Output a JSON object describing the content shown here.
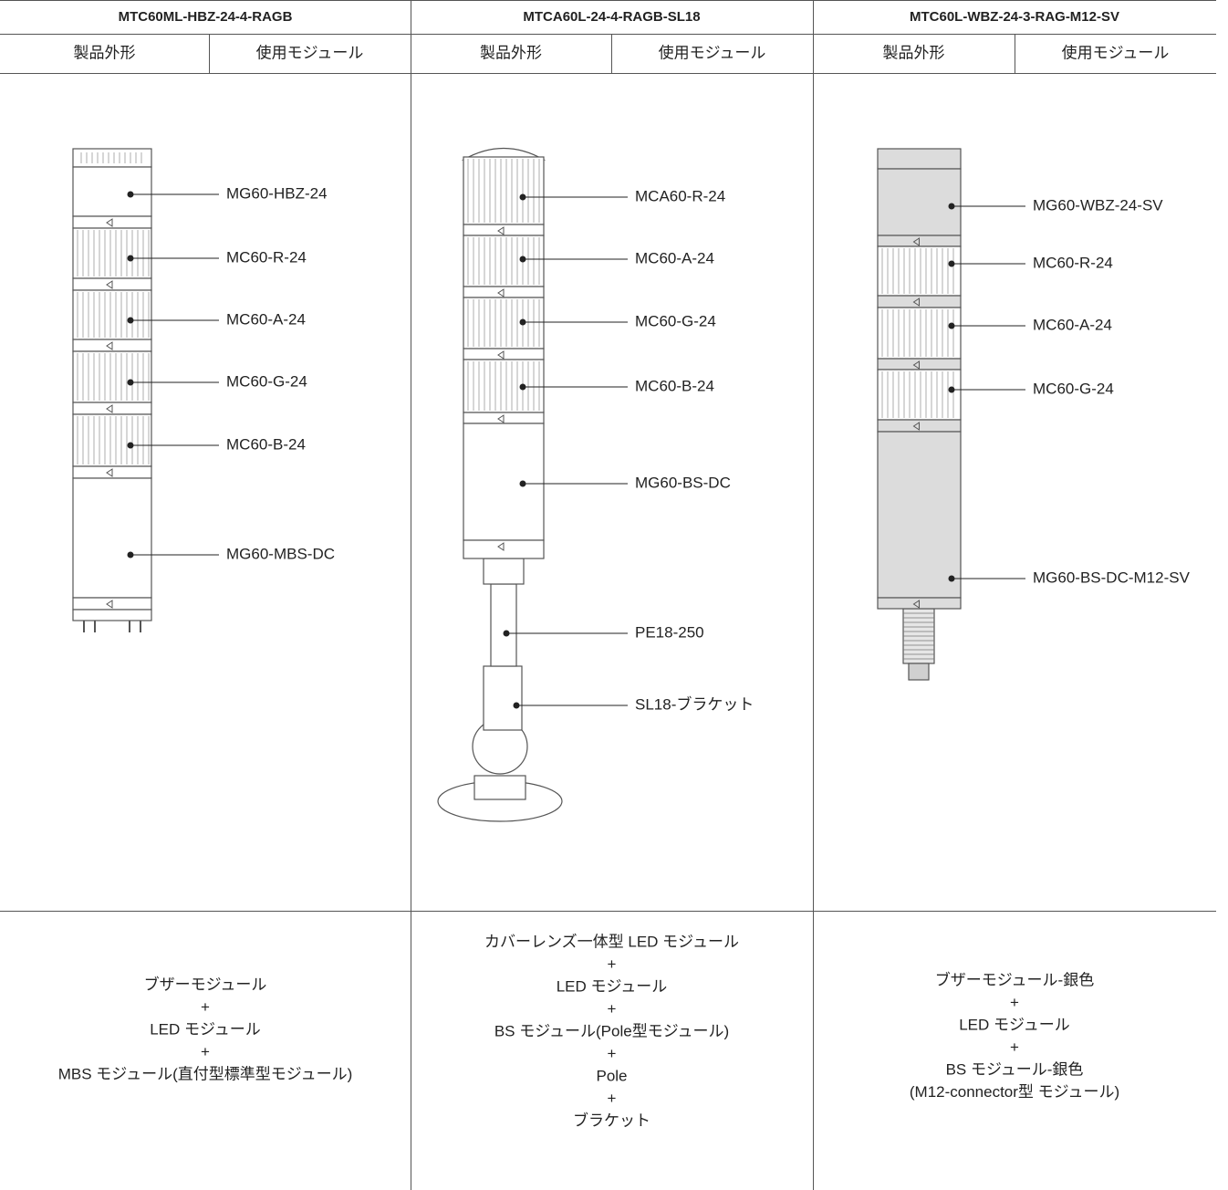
{
  "columns": [
    {
      "title": "MTC60ML-HBZ-24-4-RAGB",
      "subheaders": [
        "製品外形",
        "使用モジュール"
      ],
      "modules": [
        "MG60-HBZ-24",
        "MC60-R-24",
        "MC60-A-24",
        "MC60-G-24",
        "MC60-B-24",
        "MG60-MBS-DC"
      ],
      "description": [
        "ブザーモジュール",
        "+",
        "LED モジュール",
        "+",
        "MBS モジュール(直付型標準型モジュール)"
      ]
    },
    {
      "title": "MTCA60L-24-4-RAGB-SL18",
      "subheaders": [
        "製品外形",
        "使用モジュール"
      ],
      "modules": [
        "MCA60-R-24",
        "MC60-A-24",
        "MC60-G-24",
        "MC60-B-24",
        "MG60-BS-DC",
        "PE18-250",
        "SL18-ブラケット"
      ],
      "description": [
        "カバーレンズ一体型 LED モジュール",
        "+",
        "LED モジュール",
        "+",
        "BS モジュール(Pole型モジュール)",
        "+",
        "Pole",
        "+",
        "ブラケット"
      ]
    },
    {
      "title": "MTC60L-WBZ-24-3-RAG-M12-SV",
      "subheaders": [
        "製品外形",
        "使用モジュール"
      ],
      "modules": [
        "MG60-WBZ-24-SV",
        "MC60-R-24",
        "MC60-A-24",
        "MC60-G-24",
        "MG60-BS-DC-M12-SV"
      ],
      "description": [
        "ブザーモジュール-銀色",
        "+",
        "LED モジュール",
        "+",
        "BS モジュール-銀色",
        "(M12-connector型 モジュール)"
      ]
    }
  ]
}
